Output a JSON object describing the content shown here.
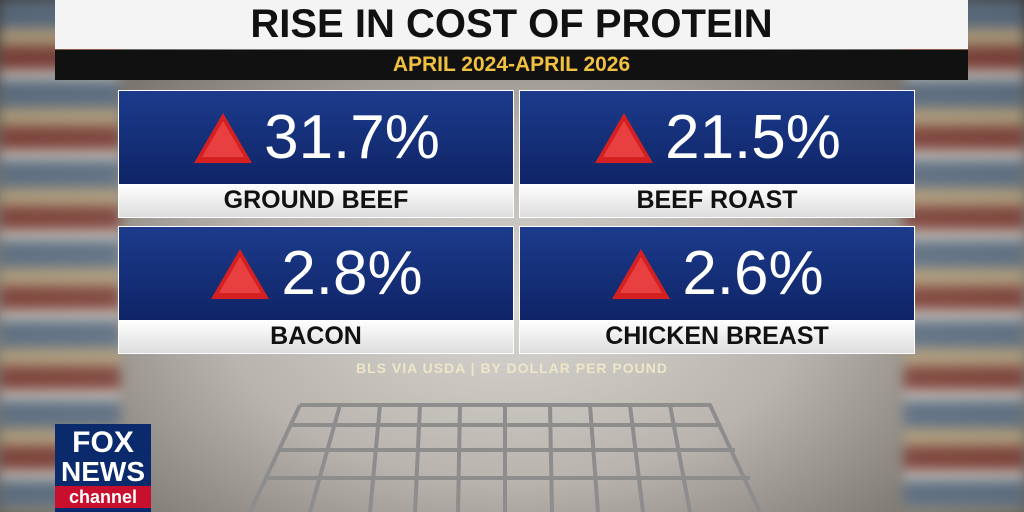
{
  "header": {
    "title": "RISE IN COST OF PROTEIN",
    "subtitle": "APRIL 2024-APRIL 2026"
  },
  "items": [
    {
      "value": "31.7%",
      "label": "GROUND BEEF"
    },
    {
      "value": "21.5%",
      "label": "BEEF ROAST"
    },
    {
      "value": "2.8%",
      "label": "BACON"
    },
    {
      "value": "2.6%",
      "label": "CHICKEN BREAST"
    }
  ],
  "source": "BLS VIA USDA | BY DOLLAR PER POUND",
  "logo": {
    "line1": "FOX",
    "line2": "NEWS",
    "line3": "channel"
  }
}
